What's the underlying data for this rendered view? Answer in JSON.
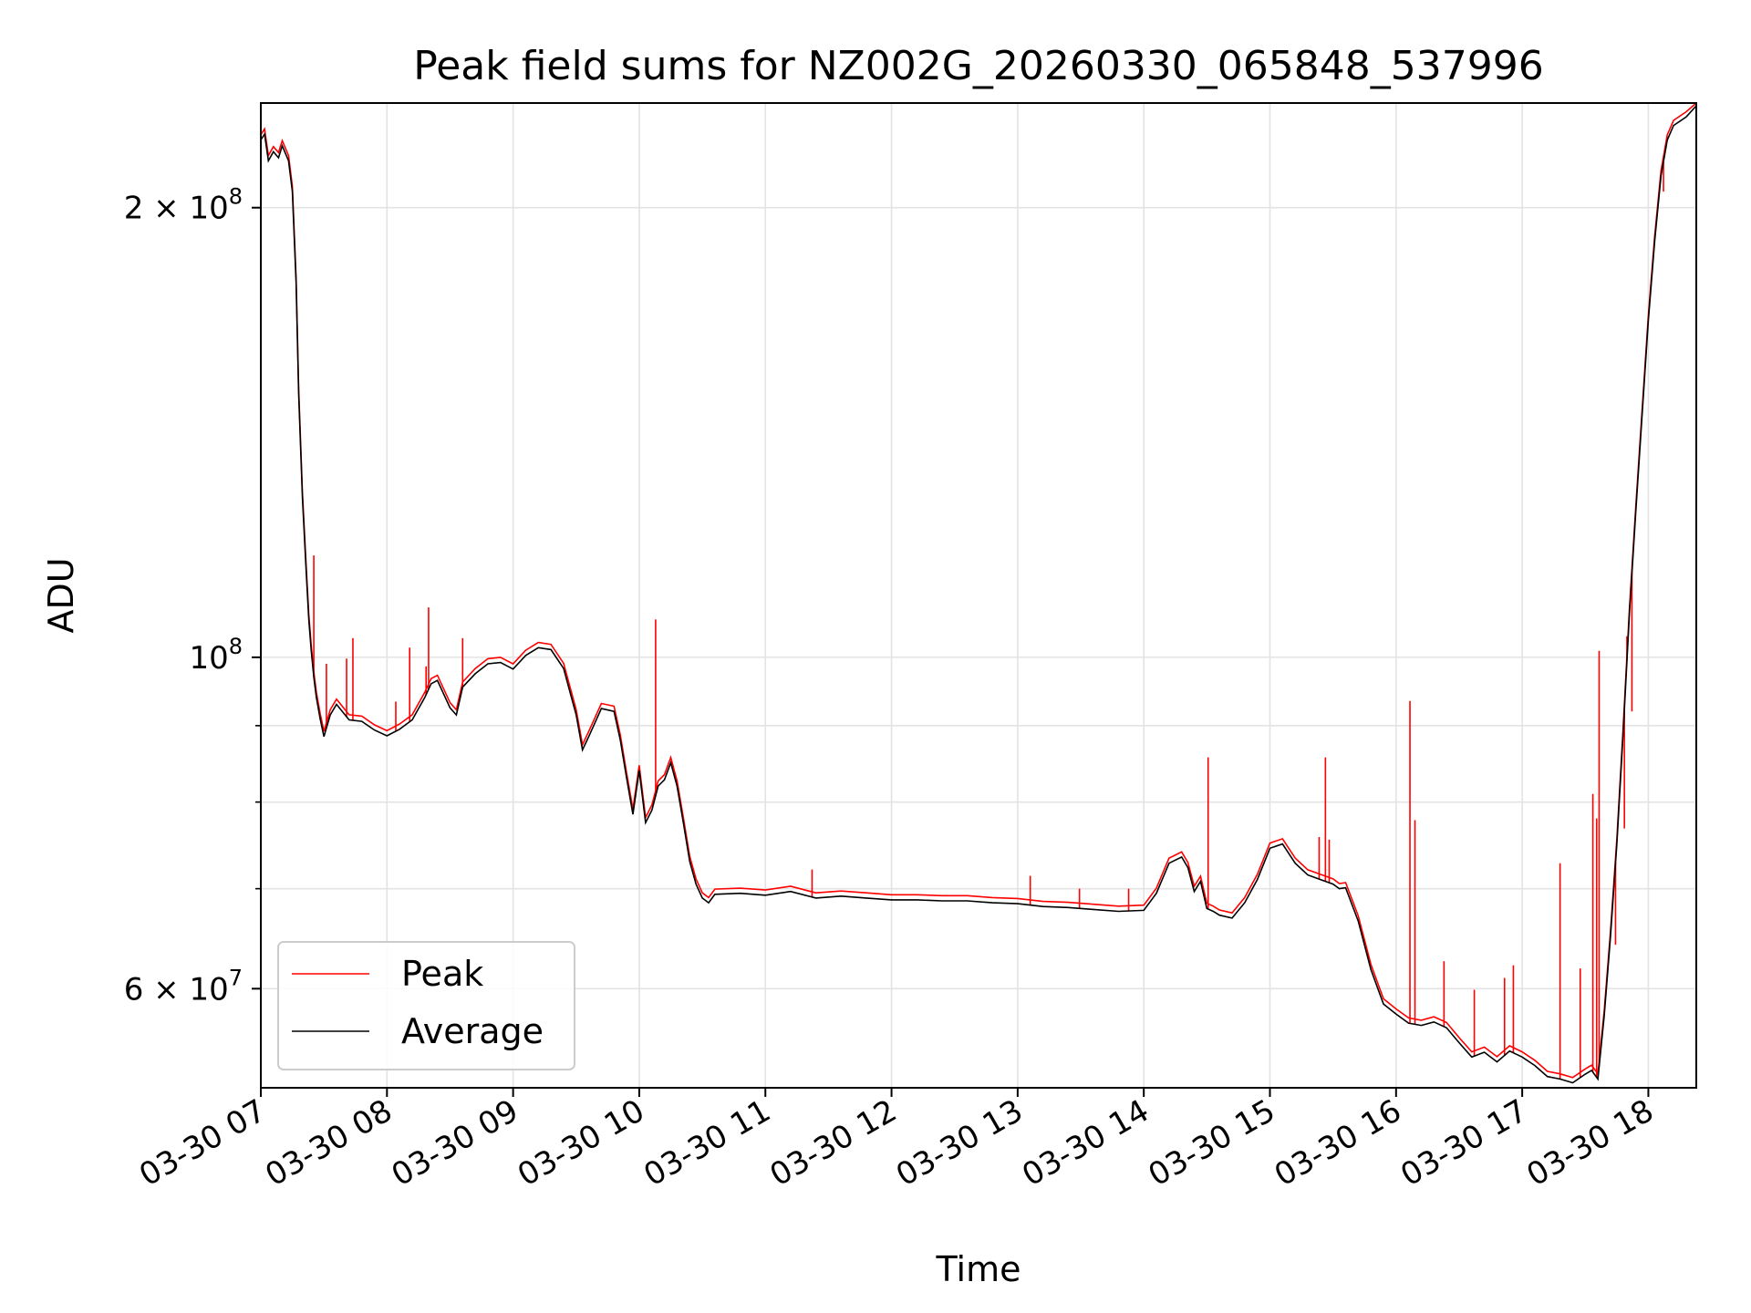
{
  "chart_data": {
    "type": "line",
    "title": "Peak field sums for NZ002G_20260330_065848_537996",
    "xlabel": "Time",
    "ylabel": "ADU",
    "yscale": "log",
    "xlim": [
      7.0,
      18.38
    ],
    "ylim": [
      51500000,
      235000000
    ],
    "grid": true,
    "legend_position": "lower-left",
    "x_ticks": [
      {
        "value": 7,
        "label": "03-30 07"
      },
      {
        "value": 8,
        "label": "03-30 08"
      },
      {
        "value": 9,
        "label": "03-30 09"
      },
      {
        "value": 10,
        "label": "03-30 10"
      },
      {
        "value": 11,
        "label": "03-30 11"
      },
      {
        "value": 12,
        "label": "03-30 12"
      },
      {
        "value": 13,
        "label": "03-30 13"
      },
      {
        "value": 14,
        "label": "03-30 14"
      },
      {
        "value": 15,
        "label": "03-30 15"
      },
      {
        "value": 16,
        "label": "03-30 16"
      },
      {
        "value": 17,
        "label": "03-30 17"
      },
      {
        "value": 18,
        "label": "03-30 18"
      }
    ],
    "y_major_ticks": [
      {
        "value": 200000000,
        "base": "2 × 10",
        "exp": "8"
      },
      {
        "value": 100000000,
        "base": "10",
        "exp": "8"
      },
      {
        "value": 60000000,
        "base": "6 × 10",
        "exp": "7"
      }
    ],
    "y_minor_ticks": [
      90000000,
      80000000,
      70000000
    ],
    "series": [
      {
        "name": "Average",
        "color": "#000000",
        "x": [
          7.0,
          7.03,
          7.06,
          7.1,
          7.14,
          7.17,
          7.22,
          7.25,
          7.28,
          7.3,
          7.33,
          7.36,
          7.38,
          7.4,
          7.42,
          7.44,
          7.47,
          7.5,
          7.55,
          7.6,
          7.7,
          7.8,
          7.9,
          8.0,
          8.1,
          8.2,
          8.3,
          8.35,
          8.4,
          8.5,
          8.55,
          8.6,
          8.7,
          8.8,
          8.9,
          9.0,
          9.1,
          9.2,
          9.3,
          9.4,
          9.5,
          9.55,
          9.6,
          9.7,
          9.8,
          9.85,
          9.9,
          9.95,
          10.0,
          10.05,
          10.1,
          10.15,
          10.2,
          10.25,
          10.3,
          10.35,
          10.4,
          10.45,
          10.5,
          10.55,
          10.6,
          10.8,
          11.0,
          11.2,
          11.4,
          11.6,
          11.8,
          12.0,
          12.2,
          12.4,
          12.6,
          12.8,
          13.0,
          13.2,
          13.4,
          13.6,
          13.8,
          14.0,
          14.1,
          14.2,
          14.3,
          14.35,
          14.4,
          14.45,
          14.5,
          14.55,
          14.6,
          14.7,
          14.8,
          14.9,
          15.0,
          15.1,
          15.2,
          15.3,
          15.4,
          15.5,
          15.55,
          15.6,
          15.7,
          15.8,
          15.9,
          16.0,
          16.1,
          16.2,
          16.3,
          16.4,
          16.5,
          16.6,
          16.7,
          16.8,
          16.9,
          17.0,
          17.1,
          17.2,
          17.3,
          17.4,
          17.5,
          17.55,
          17.6,
          17.65,
          17.7,
          17.75,
          17.8,
          17.85,
          17.9,
          17.95,
          18.0,
          18.05,
          18.1,
          18.15,
          18.2,
          18.3,
          18.38
        ],
        "y": [
          222000000,
          224000000,
          215000000,
          218000000,
          216000000,
          220000000,
          215000000,
          205000000,
          178000000,
          150000000,
          128000000,
          114000000,
          106000000,
          101000000,
          97000000,
          94000000,
          91000000,
          88500000,
          91500000,
          93000000,
          90800000,
          90600000,
          89400000,
          88600000,
          89500000,
          90800000,
          94000000,
          96000000,
          96500000,
          92500000,
          91500000,
          95500000,
          97500000,
          99000000,
          99200000,
          98200000,
          100300000,
          101500000,
          101200000,
          98300000,
          91500000,
          86700000,
          88500000,
          92400000,
          92000000,
          88000000,
          83000000,
          78500000,
          84000000,
          77500000,
          79000000,
          82000000,
          82800000,
          85000000,
          82000000,
          77500000,
          73000000,
          70500000,
          69000000,
          68500000,
          69400000,
          69500000,
          69300000,
          69700000,
          69000000,
          69200000,
          69000000,
          68800000,
          68800000,
          68700000,
          68700000,
          68500000,
          68400000,
          68100000,
          68000000,
          67800000,
          67600000,
          67700000,
          69500000,
          72800000,
          73500000,
          72300000,
          69700000,
          70800000,
          67900000,
          67600000,
          67200000,
          66900000,
          68500000,
          71000000,
          74500000,
          75000000,
          72800000,
          71500000,
          71000000,
          70500000,
          70000000,
          70100000,
          66600000,
          61800000,
          58600000,
          57700000,
          56900000,
          56700000,
          57000000,
          56500000,
          55200000,
          54000000,
          54400000,
          53600000,
          54500000,
          54000000,
          53300000,
          52400000,
          52200000,
          51900000,
          52600000,
          52900000,
          52200000,
          57500000,
          65000000,
          75000000,
          89000000,
          107000000,
          125000000,
          145000000,
          168000000,
          190000000,
          210000000,
          222000000,
          227000000,
          230000000,
          234000000
        ]
      },
      {
        "name": "Peak",
        "color": "#ff0000",
        "spikes": [
          {
            "x": 7.42,
            "y": 117000000
          },
          {
            "x": 7.52,
            "y": 99000000
          },
          {
            "x": 7.68,
            "y": 99800000
          },
          {
            "x": 7.73,
            "y": 103000000
          },
          {
            "x": 8.07,
            "y": 93400000
          },
          {
            "x": 8.18,
            "y": 101500000
          },
          {
            "x": 8.31,
            "y": 98600000
          },
          {
            "x": 8.33,
            "y": 108000000
          },
          {
            "x": 8.6,
            "y": 103000000
          },
          {
            "x": 10.13,
            "y": 106000000
          },
          {
            "x": 11.37,
            "y": 72100000
          },
          {
            "x": 13.1,
            "y": 71400000
          },
          {
            "x": 13.49,
            "y": 70000000
          },
          {
            "x": 13.88,
            "y": 70000000
          },
          {
            "x": 14.51,
            "y": 85700000
          },
          {
            "x": 15.39,
            "y": 75800000
          },
          {
            "x": 15.44,
            "y": 85700000
          },
          {
            "x": 15.47,
            "y": 75500000
          },
          {
            "x": 16.11,
            "y": 93500000
          },
          {
            "x": 16.15,
            "y": 77800000
          },
          {
            "x": 16.38,
            "y": 62600000
          },
          {
            "x": 16.62,
            "y": 59900000
          },
          {
            "x": 16.86,
            "y": 61000000
          },
          {
            "x": 16.93,
            "y": 62200000
          },
          {
            "x": 17.3,
            "y": 72800000
          },
          {
            "x": 17.46,
            "y": 61900000
          },
          {
            "x": 17.56,
            "y": 81000000
          },
          {
            "x": 17.59,
            "y": 78000000
          },
          {
            "x": 17.61,
            "y": 101000000
          },
          {
            "x": 17.74,
            "y": 64200000
          },
          {
            "x": 17.81,
            "y": 76800000
          },
          {
            "x": 17.83,
            "y": 103300000
          },
          {
            "x": 17.87,
            "y": 92000000
          },
          {
            "x": 18.12,
            "y": 205000000
          }
        ]
      }
    ]
  }
}
